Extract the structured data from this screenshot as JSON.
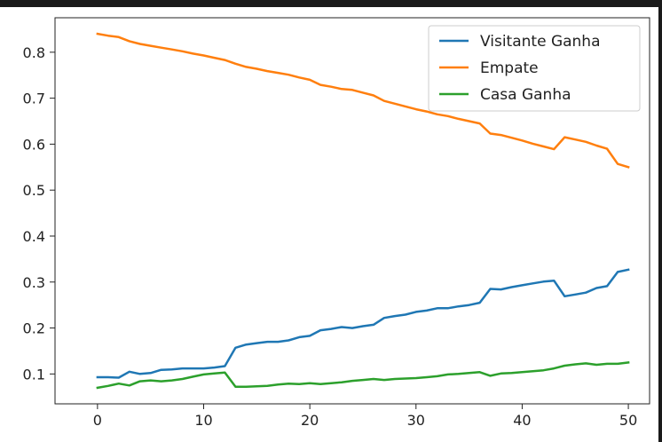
{
  "chart_data": {
    "type": "line",
    "xlim": [
      -4,
      52
    ],
    "ylim": [
      0.035,
      0.875
    ],
    "xticks": [
      0,
      10,
      20,
      30,
      40,
      50
    ],
    "yticks": [
      0.1,
      0.2,
      0.3,
      0.4,
      0.5,
      0.6,
      0.7,
      0.8
    ],
    "xticklabels": [
      "0",
      "10",
      "20",
      "30",
      "40",
      "50"
    ],
    "yticklabels": [
      "0.1",
      "0.2",
      "0.3",
      "0.4",
      "0.5",
      "0.6",
      "0.7",
      "0.8"
    ],
    "grid": false,
    "legend_position": "top-right",
    "x": [
      0,
      1,
      2,
      3,
      4,
      5,
      6,
      7,
      8,
      9,
      10,
      11,
      12,
      13,
      14,
      15,
      16,
      17,
      18,
      19,
      20,
      21,
      22,
      23,
      24,
      25,
      26,
      27,
      28,
      29,
      30,
      31,
      32,
      33,
      34,
      35,
      36,
      37,
      38,
      39,
      40,
      41,
      42,
      43,
      44,
      45,
      46,
      47,
      48,
      49,
      50
    ],
    "series": [
      {
        "name": "Visitante Ganha",
        "color": "#1f77b4",
        "values": [
          0.093,
          0.093,
          0.092,
          0.105,
          0.1,
          0.102,
          0.109,
          0.11,
          0.112,
          0.112,
          0.112,
          0.114,
          0.117,
          0.157,
          0.164,
          0.167,
          0.17,
          0.17,
          0.173,
          0.18,
          0.183,
          0.195,
          0.198,
          0.202,
          0.2,
          0.204,
          0.207,
          0.222,
          0.226,
          0.229,
          0.235,
          0.238,
          0.243,
          0.243,
          0.247,
          0.25,
          0.255,
          0.285,
          0.284,
          0.289,
          0.293,
          0.297,
          0.301,
          0.303,
          0.269,
          0.273,
          0.277,
          0.287,
          0.291,
          0.322,
          0.327
        ]
      },
      {
        "name": "Empate",
        "color": "#ff7f0e",
        "values": [
          0.84,
          0.836,
          0.833,
          0.824,
          0.818,
          0.814,
          0.81,
          0.806,
          0.802,
          0.797,
          0.793,
          0.788,
          0.783,
          0.775,
          0.768,
          0.764,
          0.759,
          0.755,
          0.751,
          0.745,
          0.74,
          0.729,
          0.725,
          0.72,
          0.718,
          0.712,
          0.706,
          0.694,
          0.688,
          0.682,
          0.676,
          0.671,
          0.665,
          0.661,
          0.655,
          0.65,
          0.645,
          0.623,
          0.62,
          0.614,
          0.608,
          0.601,
          0.595,
          0.589,
          0.615,
          0.61,
          0.605,
          0.597,
          0.59,
          0.557,
          0.55
        ]
      },
      {
        "name": "Casa Ganha",
        "color": "#2ca02c",
        "values": [
          0.07,
          0.074,
          0.079,
          0.075,
          0.084,
          0.086,
          0.084,
          0.086,
          0.089,
          0.094,
          0.099,
          0.101,
          0.103,
          0.072,
          0.072,
          0.073,
          0.074,
          0.077,
          0.079,
          0.078,
          0.08,
          0.078,
          0.08,
          0.082,
          0.085,
          0.087,
          0.089,
          0.087,
          0.089,
          0.09,
          0.091,
          0.093,
          0.095,
          0.099,
          0.1,
          0.102,
          0.104,
          0.096,
          0.101,
          0.102,
          0.104,
          0.106,
          0.108,
          0.112,
          0.118,
          0.121,
          0.123,
          0.12,
          0.122,
          0.122,
          0.125
        ]
      }
    ]
  }
}
